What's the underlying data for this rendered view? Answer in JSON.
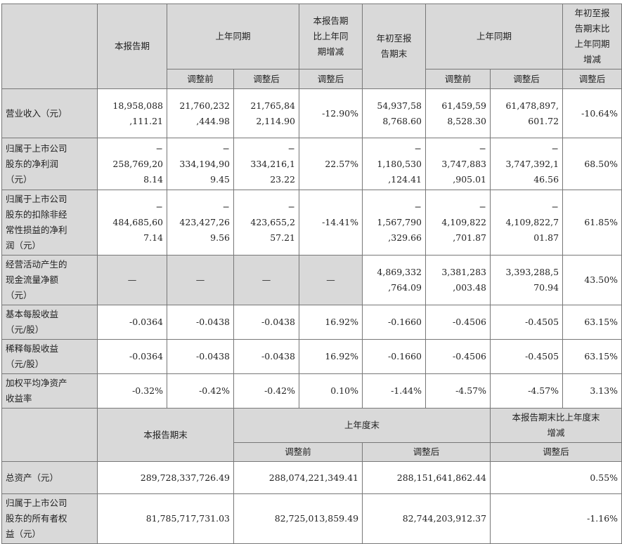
{
  "top_header": {
    "current_period": "本报告期",
    "prior_period": "上年同期",
    "period_change": "本报告期\n比上年同\n期增减",
    "ytd": "年初至报\n告期末",
    "prior_ytd": "上年同期",
    "ytd_change": "年初至报\n告期末比\n上年同期\n增减",
    "sub": [
      "调整前",
      "调整后",
      "调整后",
      "调整前",
      "调整后",
      "调整后"
    ]
  },
  "rows": [
    {
      "label": "营业收入（元）",
      "cells": [
        "18,958,088\n,111.21",
        "21,760,232\n,444.98",
        "21,765,84\n2,114.90",
        "-12.90%",
        "54,937,58\n8,768.60",
        "61,459,59\n8,528.30",
        "61,478,897,\n601.72",
        "-10.64%"
      ]
    },
    {
      "label": "归属于上市公司\n股东的净利润\n（元）",
      "cells": [
        "−\n258,769,20\n8.14",
        "−\n334,194,90\n9.45",
        "−\n334,216,1\n23.22",
        "22.57%",
        "−\n1,180,530\n,124.41",
        "−\n3,747,883\n,905.01",
        "−\n3,747,392,1\n46.56",
        "68.50%"
      ]
    },
    {
      "label": "归属于上市公司\n股东的扣除非经\n常性损益的净利\n润（元）",
      "cells": [
        "−\n484,685,60\n7.14",
        "−\n423,427,26\n9.56",
        "−\n423,655,2\n57.21",
        "-14.41%",
        "−\n1,567,790\n,329.66",
        "−\n4,109,822\n,701.87",
        "−\n4,109,822,7\n01.87",
        "61.85%"
      ]
    },
    {
      "label": "经营活动产生的\n现金流量净额\n（元）",
      "cells": [
        "—",
        "—",
        "—",
        "—",
        "4,869,332\n,764.09",
        "3,381,283\n,003.48",
        "3,393,288,5\n70.94",
        "43.50%"
      ]
    },
    {
      "label": "基本每股收益\n（元/股）",
      "cells": [
        "-0.0364",
        "-0.0438",
        "-0.0438",
        "16.92%",
        "-0.1660",
        "-0.4506",
        "-0.4505",
        "63.15%"
      ]
    },
    {
      "label": "稀释每股收益\n（元/股）",
      "cells": [
        "-0.0364",
        "-0.0438",
        "-0.0438",
        "16.92%",
        "-0.1660",
        "-0.4506",
        "-0.4505",
        "63.15%"
      ]
    },
    {
      "label": "加权平均净资产\n收益率",
      "cells": [
        "-0.32%",
        "-0.42%",
        "-0.42%",
        "0.10%",
        "-1.44%",
        "-4.57%",
        "-4.57%",
        "3.13%"
      ]
    }
  ],
  "bottom_header": {
    "period_end": "本报告期末",
    "prior_year_end": "上年度末",
    "change": "本报告期末比上年度末\n增减",
    "sub": [
      "调整前",
      "调整后",
      "调整后"
    ]
  },
  "bottom_rows": [
    {
      "label": "总资产（元）",
      "cells": [
        "289,728,337,726.49",
        "288,074,221,349.41",
        "288,151,641,862.44",
        "0.55%"
      ]
    },
    {
      "label": "归属于上市公司\n股东的所有者权\n益（元）",
      "cells": [
        "81,785,717,731.03",
        "82,725,013,859.49",
        "82,744,203,912.37",
        "-1.16%"
      ]
    }
  ],
  "colors": {
    "header_bg": "#d9d9d9",
    "border": "#777777"
  }
}
